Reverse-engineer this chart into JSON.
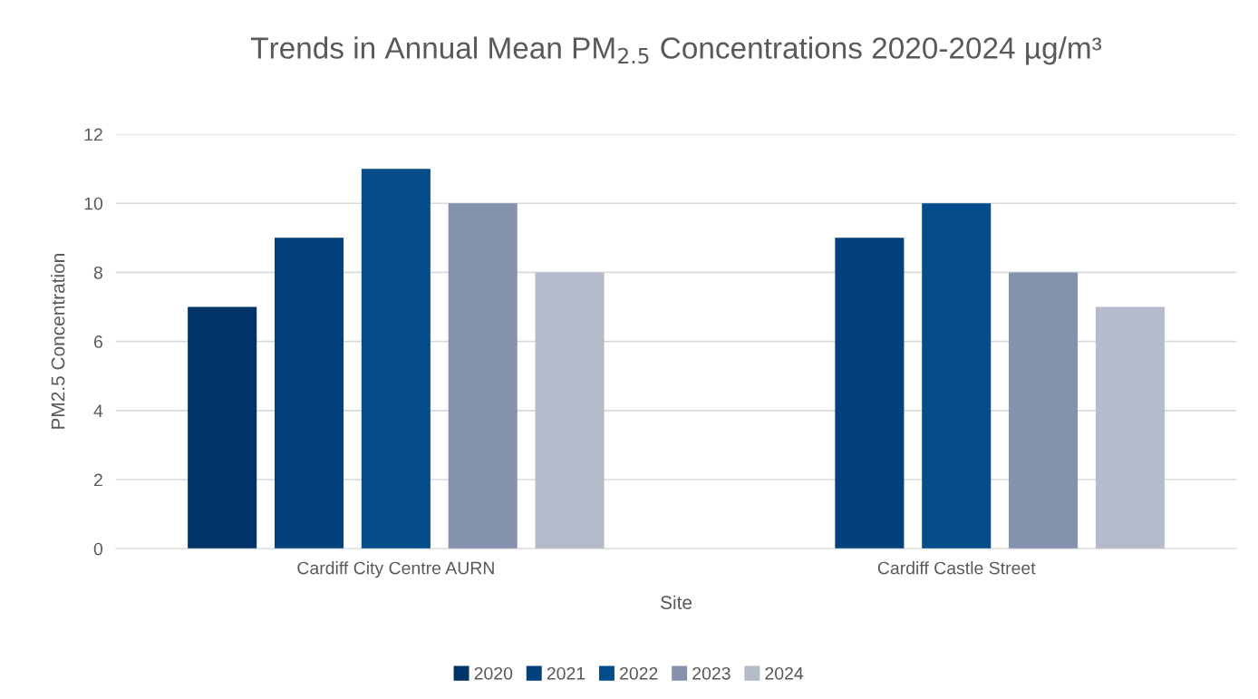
{
  "chart_data": {
    "type": "bar",
    "title": "Trends in Annual Mean PM$_{2.5}$ Concentrations 2020-2024 µg/m³",
    "xlabel": "Site",
    "ylabel": "PM2.5 Concentration",
    "categories": [
      "Cardiff City Centre AURN",
      "Cardiff Castle Street"
    ],
    "series": [
      {
        "name": "2020",
        "color": "#003366",
        "values": [
          7,
          null
        ]
      },
      {
        "name": "2021",
        "color": "#03417d",
        "values": [
          9,
          9
        ]
      },
      {
        "name": "2022",
        "color": "#044d8a",
        "values": [
          11,
          10
        ]
      },
      {
        "name": "2023",
        "color": "#8592ae",
        "values": [
          10,
          8
        ]
      },
      {
        "name": "2024",
        "color": "#b5bbcb",
        "values": [
          8,
          7
        ]
      }
    ],
    "ylim": [
      0,
      12
    ],
    "yticks": [
      0,
      2,
      4,
      6,
      8,
      10,
      12
    ],
    "grid": "y",
    "legend": "bottom"
  }
}
